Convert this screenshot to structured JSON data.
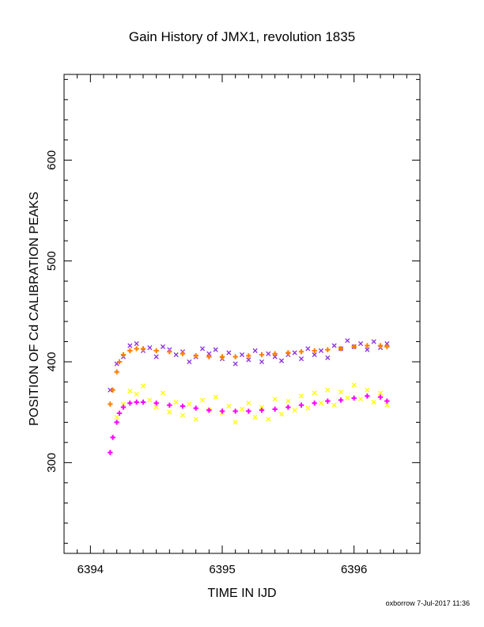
{
  "chart_data": {
    "type": "scatter",
    "title": "Gain History of JMX1, revolution 1835",
    "xlabel": "TIME IN IJD",
    "ylabel": "POSITION OF Cd CALIBRATION PEAKS",
    "xlim": [
      6393.8,
      6396.5
    ],
    "ylim": [
      210,
      685
    ],
    "xticks": [
      6394,
      6395,
      6396
    ],
    "xtick_labels": [
      "6394",
      "6395",
      "6396"
    ],
    "yticks": [
      300,
      400,
      500,
      600
    ],
    "ytick_labels": [
      "300",
      "400",
      "500",
      "600"
    ],
    "grid": false,
    "legend": "none",
    "series": [
      {
        "marker": "x",
        "color": "#8a2be2",
        "x": [
          6394.15,
          6394.2,
          6394.25,
          6394.3,
          6394.35,
          6394.4,
          6394.45,
          6394.5,
          6394.55,
          6394.6,
          6394.65,
          6394.7,
          6394.75,
          6394.8,
          6394.85,
          6394.9,
          6394.95,
          6395.0,
          6395.05,
          6395.1,
          6395.15,
          6395.2,
          6395.25,
          6395.3,
          6395.35,
          6395.4,
          6395.45,
          6395.5,
          6395.55,
          6395.6,
          6395.65,
          6395.7,
          6395.75,
          6395.8,
          6395.85,
          6395.9,
          6395.95,
          6396.0,
          6396.05,
          6396.1,
          6396.15,
          6396.2,
          6396.25
        ],
        "y": [
          372,
          398,
          405,
          416,
          418,
          411,
          414,
          405,
          415,
          412,
          407,
          410,
          400,
          405,
          413,
          408,
          412,
          403,
          409,
          398,
          407,
          402,
          411,
          400,
          408,
          405,
          401,
          407,
          409,
          403,
          413,
          407,
          411,
          404,
          416,
          413,
          421,
          415,
          418,
          412,
          420,
          414,
          418
        ]
      },
      {
        "marker": "+",
        "color": "#ff7f00",
        "x": [
          6394.15,
          6394.17,
          6394.2,
          6394.22,
          6394.25,
          6394.3,
          6394.35,
          6394.4,
          6394.5,
          6394.6,
          6394.7,
          6394.8,
          6394.9,
          6395.0,
          6395.1,
          6395.2,
          6395.3,
          6395.4,
          6395.5,
          6395.6,
          6395.7,
          6395.8,
          6395.9,
          6396.0,
          6396.1,
          6396.2,
          6396.25
        ],
        "y": [
          358,
          372,
          390,
          400,
          407,
          411,
          413,
          413,
          411,
          410,
          408,
          406,
          405,
          405,
          405,
          406,
          407,
          408,
          409,
          410,
          411,
          412,
          413,
          415,
          416,
          416,
          415
        ]
      },
      {
        "marker": "x",
        "color": "#ffff00",
        "x": [
          6394.2,
          6394.25,
          6394.3,
          6394.35,
          6394.4,
          6394.45,
          6394.5,
          6394.55,
          6394.6,
          6394.65,
          6394.7,
          6394.75,
          6394.8,
          6394.85,
          6394.9,
          6394.95,
          6395.0,
          6395.05,
          6395.1,
          6395.15,
          6395.2,
          6395.25,
          6395.3,
          6395.35,
          6395.4,
          6395.45,
          6395.5,
          6395.55,
          6395.6,
          6395.65,
          6395.7,
          6395.75,
          6395.8,
          6395.85,
          6395.9,
          6395.95,
          6396.0,
          6396.05,
          6396.1,
          6396.15,
          6396.2,
          6396.25
        ],
        "y": [
          345,
          358,
          371,
          368,
          376,
          362,
          355,
          369,
          350,
          360,
          347,
          358,
          343,
          362,
          352,
          365,
          349,
          356,
          340,
          353,
          359,
          345,
          355,
          343,
          363,
          348,
          361,
          352,
          366,
          354,
          369,
          359,
          372,
          357,
          370,
          364,
          377,
          363,
          372,
          360,
          369,
          357
        ]
      },
      {
        "marker": "+",
        "color": "#ff00ff",
        "x": [
          6394.15,
          6394.17,
          6394.2,
          6394.22,
          6394.25,
          6394.3,
          6394.35,
          6394.4,
          6394.5,
          6394.6,
          6394.7,
          6394.8,
          6394.9,
          6395.0,
          6395.1,
          6395.2,
          6395.3,
          6395.4,
          6395.5,
          6395.6,
          6395.7,
          6395.8,
          6395.9,
          6396.0,
          6396.1,
          6396.2,
          6396.25
        ],
        "y": [
          310,
          325,
          340,
          349,
          355,
          359,
          360,
          360,
          359,
          357,
          356,
          354,
          352,
          351,
          351,
          351,
          352,
          353,
          355,
          357,
          359,
          361,
          362,
          364,
          366,
          365,
          361
        ]
      }
    ]
  },
  "footer": {
    "text": "oxborrow  7-Jul-2017 11:36"
  }
}
